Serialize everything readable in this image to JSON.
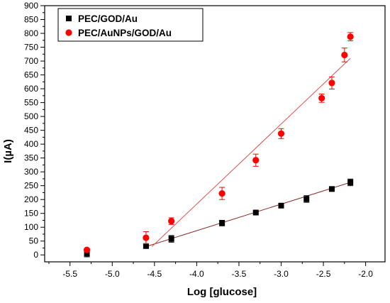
{
  "chart_data": {
    "type": "scatter",
    "xlabel": "Log [glucose]",
    "ylabel": "I(µA)",
    "xlim": [
      -5.8,
      -1.77
    ],
    "ylim": [
      -25,
      900
    ],
    "x_ticks": [
      -5.5,
      -5.0,
      -4.5,
      -4.0,
      -3.5,
      -3.0,
      -2.5,
      -2.0
    ],
    "x_tick_labels": [
      "-5.5",
      "-5.0",
      "-4.5",
      "-4.0",
      "-3.5",
      "-3.0",
      "-2.5",
      "-2.0"
    ],
    "y_ticks": [
      0,
      50,
      100,
      150,
      200,
      250,
      300,
      350,
      400,
      450,
      500,
      550,
      600,
      650,
      700,
      750,
      800,
      850,
      900
    ],
    "y_tick_labels": [
      "0",
      "50",
      "100",
      "150",
      "200",
      "250",
      "300",
      "350",
      "400",
      "450",
      "500",
      "550",
      "600",
      "650",
      "700",
      "750",
      "800",
      "850",
      "900"
    ],
    "grid": false,
    "legend_position": "top-left",
    "series": [
      {
        "name": "PEC/GOD/Au",
        "marker": "square",
        "color": "#000000",
        "fit_color": "#8b2c2c",
        "points": [
          {
            "x": -5.3,
            "y": 5,
            "err": 12
          },
          {
            "x": -4.6,
            "y": 32,
            "err": 5
          },
          {
            "x": -4.3,
            "y": 58,
            "err": 12
          },
          {
            "x": -3.7,
            "y": 115,
            "err": 10
          },
          {
            "x": -3.3,
            "y": 153,
            "err": 5
          },
          {
            "x": -3.0,
            "y": 178,
            "err": 6
          },
          {
            "x": -2.7,
            "y": 202,
            "err": 12
          },
          {
            "x": -2.4,
            "y": 238,
            "err": 6
          },
          {
            "x": -2.18,
            "y": 262,
            "err": 12
          }
        ],
        "fit_line": [
          {
            "x": -4.6,
            "y": 30
          },
          {
            "x": -2.18,
            "y": 262
          }
        ]
      },
      {
        "name": "PEC/AuNPs/GOD/Au",
        "marker": "circle",
        "color": "#ff0000",
        "fit_color": "#e05050",
        "points": [
          {
            "x": -5.3,
            "y": 18,
            "err": 6
          },
          {
            "x": -4.6,
            "y": 62,
            "err": 22
          },
          {
            "x": -4.3,
            "y": 122,
            "err": 12
          },
          {
            "x": -3.7,
            "y": 222,
            "err": 22
          },
          {
            "x": -3.3,
            "y": 342,
            "err": 22
          },
          {
            "x": -3.0,
            "y": 438,
            "err": 18
          },
          {
            "x": -2.52,
            "y": 566,
            "err": 15
          },
          {
            "x": -2.4,
            "y": 621,
            "err": 22
          },
          {
            "x": -2.25,
            "y": 722,
            "err": 25
          },
          {
            "x": -2.18,
            "y": 788,
            "err": 15
          }
        ],
        "fit_line": [
          {
            "x": -4.53,
            "y": 30
          },
          {
            "x": -2.18,
            "y": 710
          }
        ]
      }
    ]
  }
}
